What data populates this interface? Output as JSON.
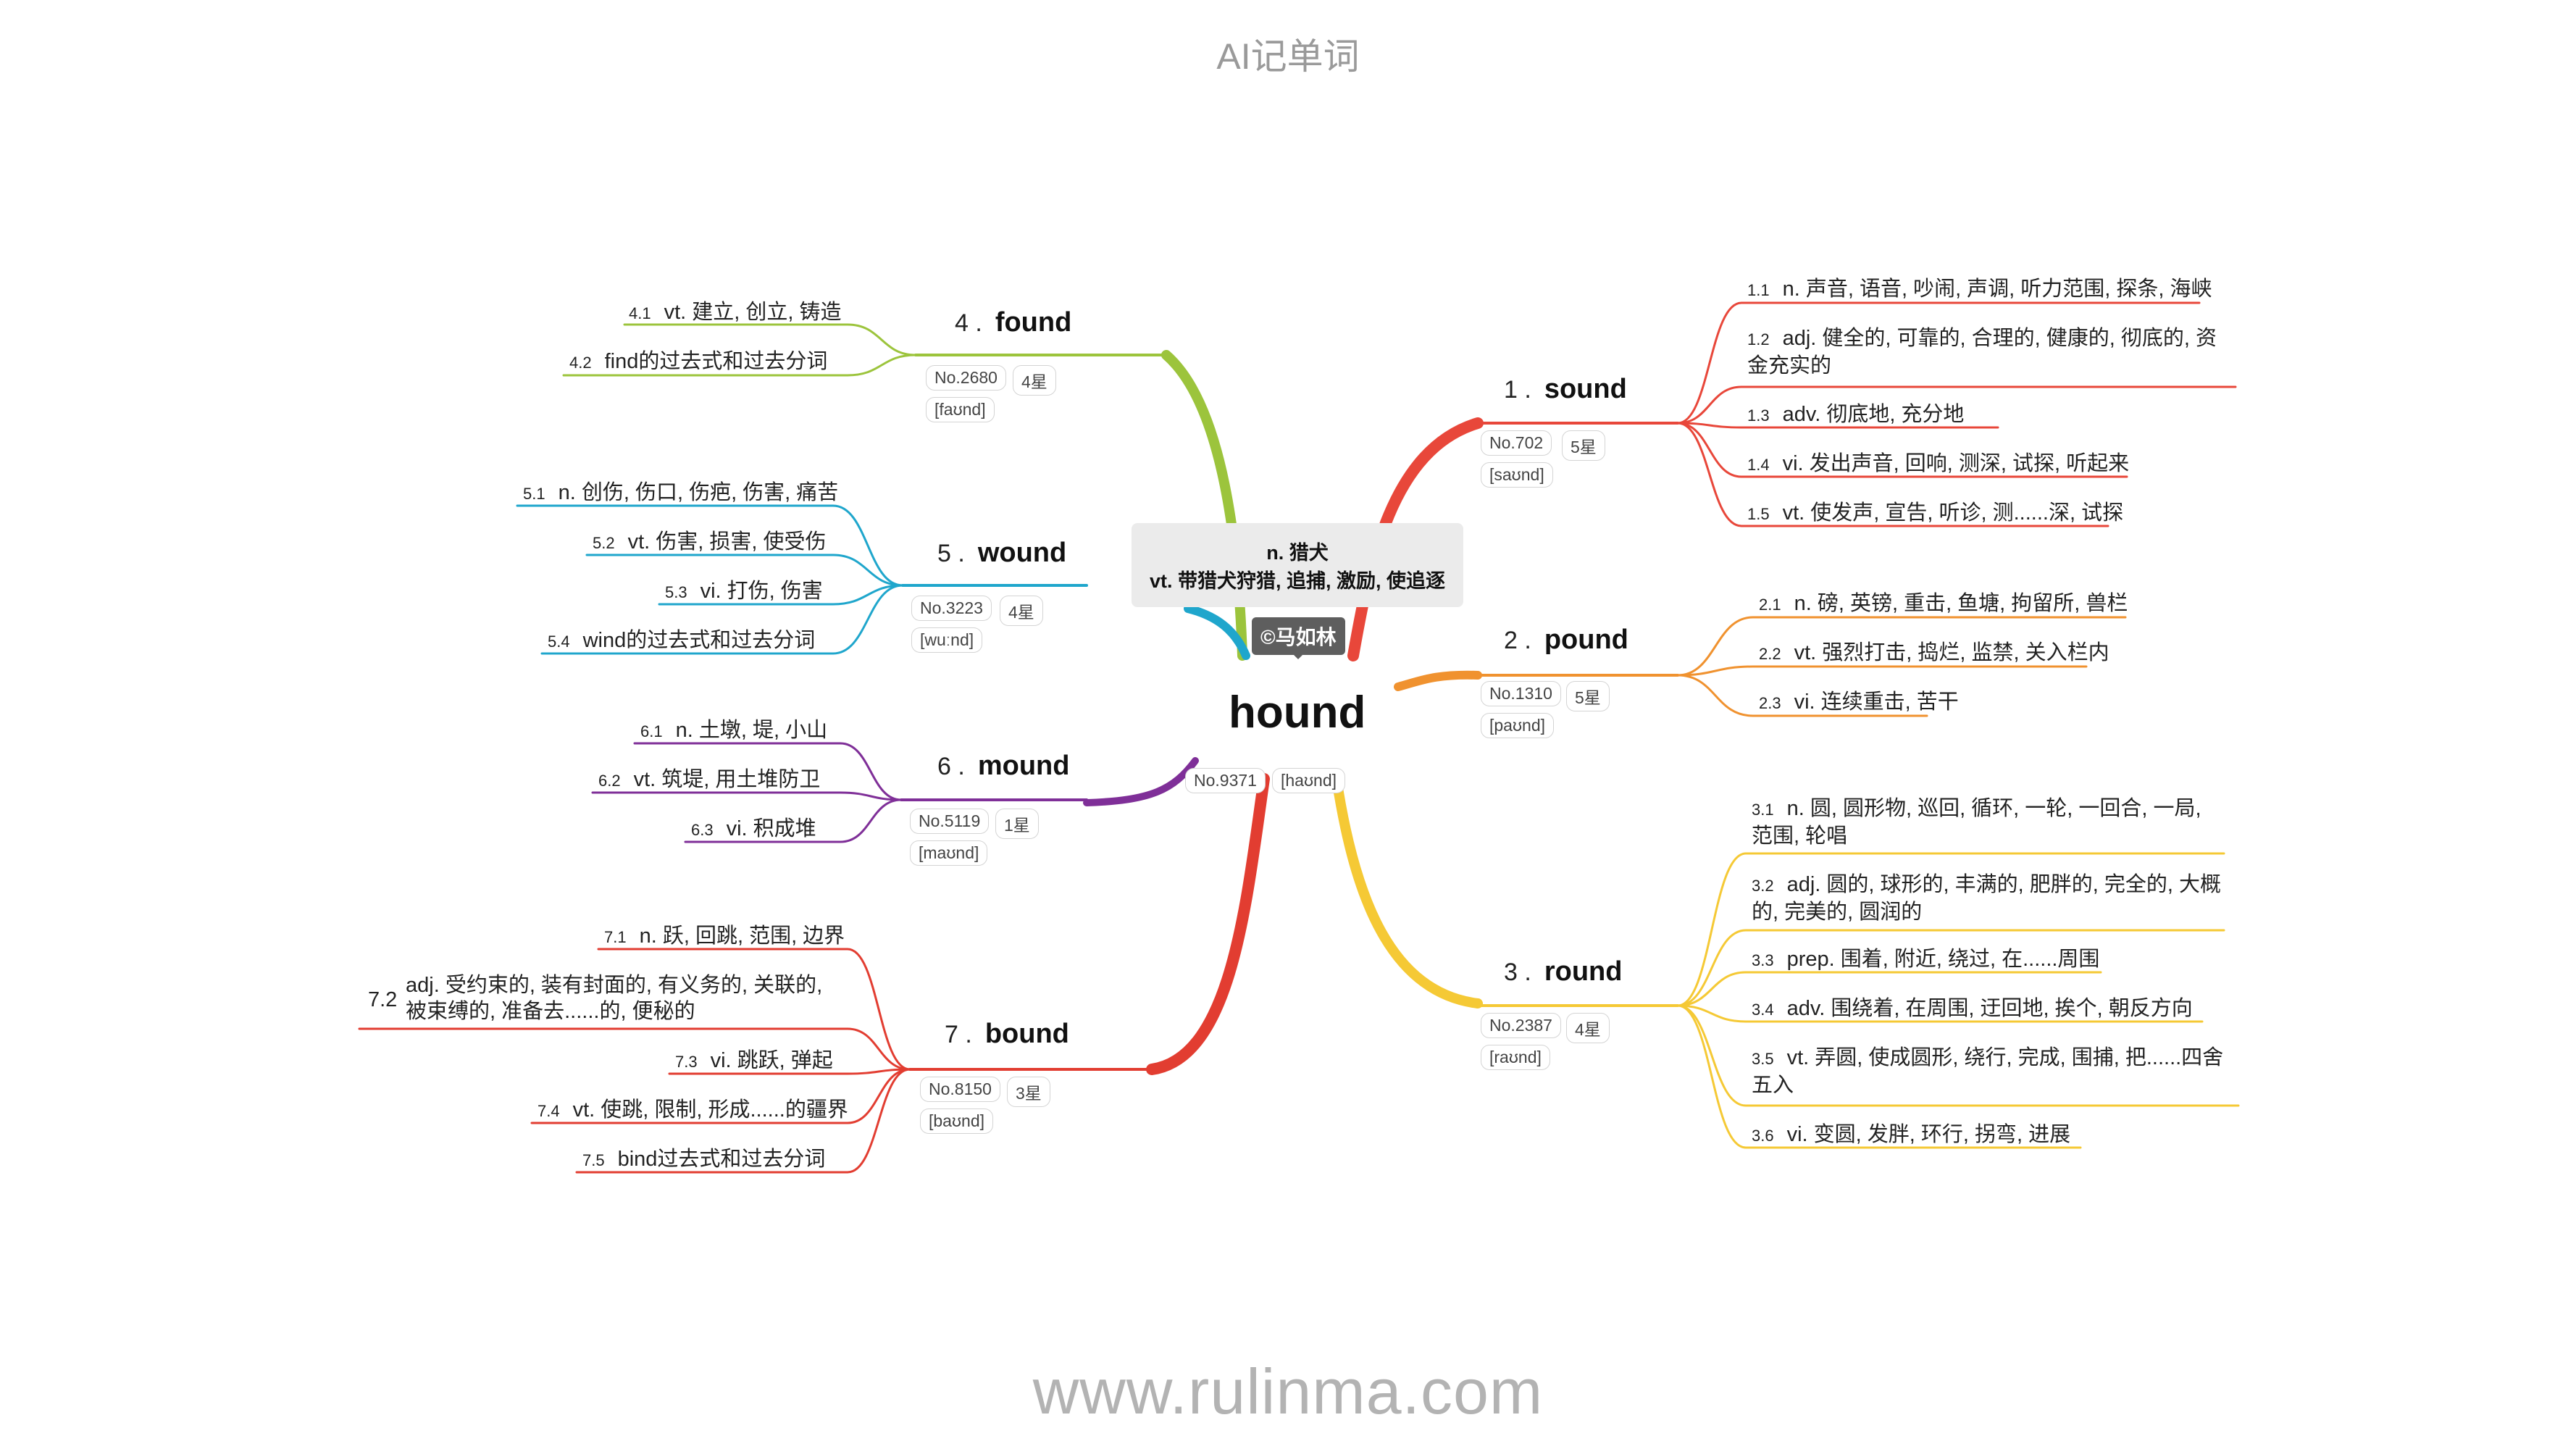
{
  "header": "AI记单词",
  "footer": "www.rulinma.com",
  "center": {
    "word": "hound",
    "rank": "No.9371",
    "phonetic": "[haʊnd]",
    "meaning_n": "n. 猎犬",
    "meaning_vt": "vt. 带猎犬狩猎, 追捕, 激励, 使追逐",
    "watermark": "©马如林"
  },
  "branches": [
    {
      "num": "1 .",
      "word": "sound",
      "rank": "No.702",
      "stars": "5星",
      "phonetic": "[saʊnd]",
      "color": "#e8473a",
      "leaves": [
        {
          "num": "1.1",
          "text": "n. 声音, 语音, 吵闹, 声调, 听力范围, 探条, 海峡"
        },
        {
          "num": "1.2",
          "text": "adj. 健全的, 可靠的, 合理的, 健康的, 彻底的, 资金充实的"
        },
        {
          "num": "1.3",
          "text": "adv. 彻底地, 充分地"
        },
        {
          "num": "1.4",
          "text": "vi. 发出声音, 回响, 测深, 试探, 听起来"
        },
        {
          "num": "1.5",
          "text": "vt. 使发声, 宣告, 听诊, 测......深, 试探"
        }
      ]
    },
    {
      "num": "2 .",
      "word": "pound",
      "rank": "No.1310",
      "stars": "5星",
      "phonetic": "[paʊnd]",
      "color": "#f0922f",
      "leaves": [
        {
          "num": "2.1",
          "text": "n. 磅, 英镑, 重击, 鱼塘, 拘留所, 兽栏"
        },
        {
          "num": "2.2",
          "text": "vt. 强烈打击, 捣烂, 监禁, 关入栏内"
        },
        {
          "num": "2.3",
          "text": "vi. 连续重击, 苦干"
        }
      ]
    },
    {
      "num": "3 .",
      "word": "round",
      "rank": "No.2387",
      "stars": "4星",
      "phonetic": "[raʊnd]",
      "color": "#f5c935",
      "leaves": [
        {
          "num": "3.1",
          "text": "n. 圆, 圆形物, 巡回, 循环, 一轮, 一回合, 一局, 范围, 轮唱"
        },
        {
          "num": "3.2",
          "text": "adj. 圆的, 球形的, 丰满的, 肥胖的, 完全的, 大概的, 完美的, 圆润的"
        },
        {
          "num": "3.3",
          "text": "prep. 围着, 附近, 绕过, 在......周围"
        },
        {
          "num": "3.4",
          "text": "adv. 围绕着, 在周围, 迂回地, 挨个, 朝反方向"
        },
        {
          "num": "3.5",
          "text": "vt. 弄圆, 使成圆形, 绕行, 完成, 围捕, 把......四舍五入"
        },
        {
          "num": "3.6",
          "text": "vi. 变圆, 发胖, 环行, 拐弯, 进展"
        }
      ]
    },
    {
      "num": "4 .",
      "word": "found",
      "rank": "No.2680",
      "stars": "4星",
      "phonetic": "[faʊnd]",
      "color": "#9cc43c",
      "leaves": [
        {
          "num": "4.1",
          "text": "vt. 建立, 创立, 铸造"
        },
        {
          "num": "4.2",
          "text": "find的过去式和过去分词"
        }
      ]
    },
    {
      "num": "5 .",
      "word": "wound",
      "rank": "No.3223",
      "stars": "4星",
      "phonetic": "[wuːnd]",
      "color": "#1fa6cc",
      "leaves": [
        {
          "num": "5.1",
          "text": "n. 创伤, 伤口, 伤疤, 伤害, 痛苦"
        },
        {
          "num": "5.2",
          "text": "vt. 伤害, 损害, 使受伤"
        },
        {
          "num": "5.3",
          "text": "vi. 打伤, 伤害"
        },
        {
          "num": "5.4",
          "text": "wind的过去式和过去分词"
        }
      ]
    },
    {
      "num": "6 .",
      "word": "mound",
      "rank": "No.5119",
      "stars": "1星",
      "phonetic": "[maʊnd]",
      "color": "#7f2f98",
      "leaves": [
        {
          "num": "6.1",
          "text": "n. 土墩, 堤, 小山"
        },
        {
          "num": "6.2",
          "text": "vt. 筑堤, 用土堆防卫"
        },
        {
          "num": "6.3",
          "text": "vi. 积成堆"
        }
      ]
    },
    {
      "num": "7 .",
      "word": "bound",
      "rank": "No.8150",
      "stars": "3星",
      "phonetic": "[baʊnd]",
      "color": "#e23d31",
      "leaves": [
        {
          "num": "7.1",
          "text": "n. 跃, 回跳, 范围, 边界"
        },
        {
          "num": "7.2",
          "text": "adj. 受约束的, 装有封面的, 有义务的, 关联的, 被束缚的, 准备去......的, 便秘的"
        },
        {
          "num": "7.3",
          "text": "vi. 跳跃, 弹起"
        },
        {
          "num": "7.4",
          "text": "vt. 使跳, 限制, 形成......的疆界"
        },
        {
          "num": "7.5",
          "text": "bind过去式和过去分词"
        }
      ]
    }
  ]
}
